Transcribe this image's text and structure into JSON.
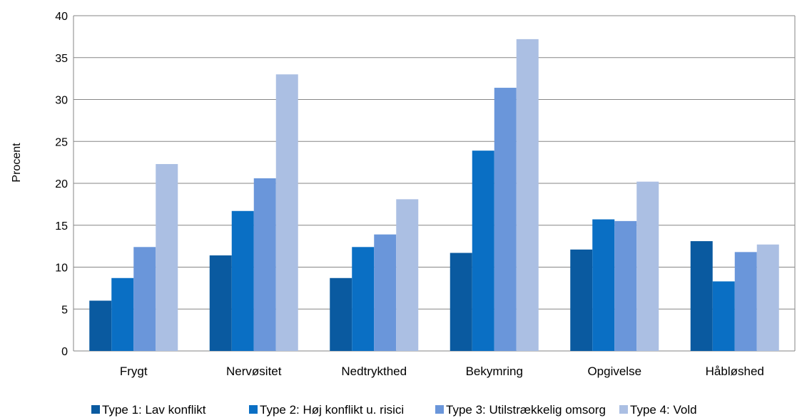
{
  "chart_data": {
    "type": "bar",
    "title": "",
    "xlabel": "",
    "ylabel": "Procent",
    "ylim": [
      0,
      40
    ],
    "yticks": [
      0,
      5,
      10,
      15,
      20,
      25,
      30,
      35,
      40
    ],
    "grid": true,
    "legend_position": "bottom",
    "categories": [
      "Frygt",
      "Nervøsitet",
      "Nedtrykthed",
      "Bekymring",
      "Opgivelse",
      "Håbløshed"
    ],
    "series": [
      {
        "name": "Type 1: Lav konflikt",
        "color": "#0A5AA0",
        "values": [
          6.0,
          11.4,
          8.7,
          11.7,
          12.1,
          13.1
        ]
      },
      {
        "name": "Type 2: Høj konflikt u. risici",
        "color": "#0A6FC4",
        "values": [
          8.7,
          16.7,
          12.4,
          23.9,
          15.7,
          8.3
        ]
      },
      {
        "name": "Type 3: Utilstrækkelig omsorg",
        "color": "#6A96DA",
        "values": [
          12.4,
          20.6,
          13.9,
          31.4,
          15.5,
          11.8
        ]
      },
      {
        "name": "Type 4: Vold",
        "color": "#ABBFE3",
        "values": [
          22.3,
          33.0,
          18.1,
          37.2,
          20.2,
          12.7
        ]
      }
    ]
  }
}
